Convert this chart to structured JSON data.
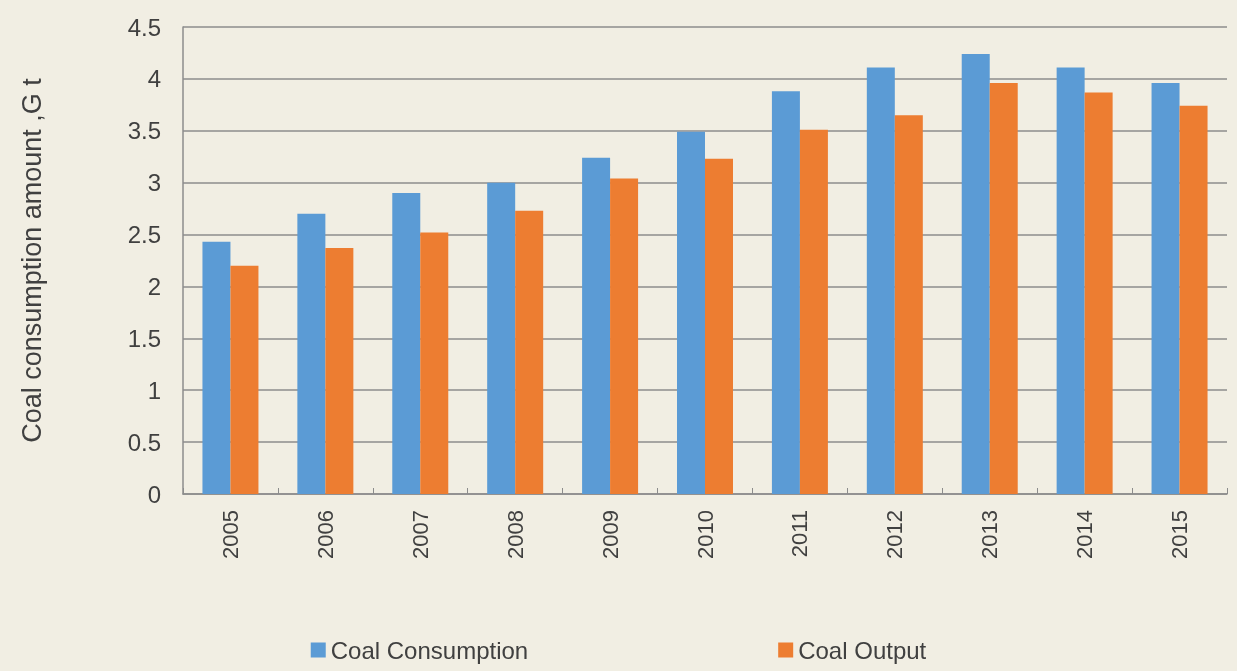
{
  "chart_data": {
    "type": "bar",
    "ylabel": "Coal consumption amount ,G t",
    "categories": [
      "2005",
      "2006",
      "2007",
      "2008",
      "2009",
      "2010",
      "2011",
      "2012",
      "2013",
      "2014",
      "2015"
    ],
    "series": [
      {
        "name": "Coal Consumption",
        "color": "#5b9bd5",
        "values": [
          2.43,
          2.7,
          2.9,
          3.0,
          3.24,
          3.49,
          3.88,
          4.11,
          4.24,
          4.11,
          3.96
        ]
      },
      {
        "name": "Coal Output",
        "color": "#ed7d31",
        "values": [
          2.2,
          2.37,
          2.52,
          2.73,
          3.04,
          3.23,
          3.51,
          3.65,
          3.96,
          3.87,
          3.74
        ]
      }
    ],
    "ylim": [
      0,
      4.5
    ],
    "yticks": [
      0,
      0.5,
      1,
      1.5,
      2,
      2.5,
      3,
      3.5,
      4,
      4.5
    ],
    "grid": "y",
    "legend": "bottom"
  }
}
